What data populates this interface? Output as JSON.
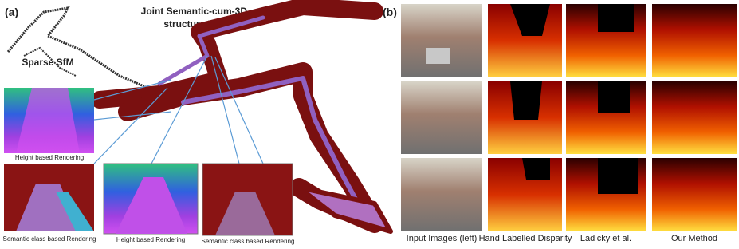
{
  "panel_a": {
    "label": "(a)",
    "map_title_lines": [
      "Joint Semantic-cum-3D",
      "structure Map"
    ],
    "sparse_label": "Sparse SfM",
    "renderings": [
      "Height based Rendering",
      "Semantic class based Rendering",
      "Height based Rendering",
      "Semantic class based Rendering"
    ]
  },
  "panel_b": {
    "label": "(b)",
    "columns": [
      "Input Images (left)",
      "Hand Labelled Disparity",
      "Ladicky et al.",
      "Our Method"
    ]
  }
}
